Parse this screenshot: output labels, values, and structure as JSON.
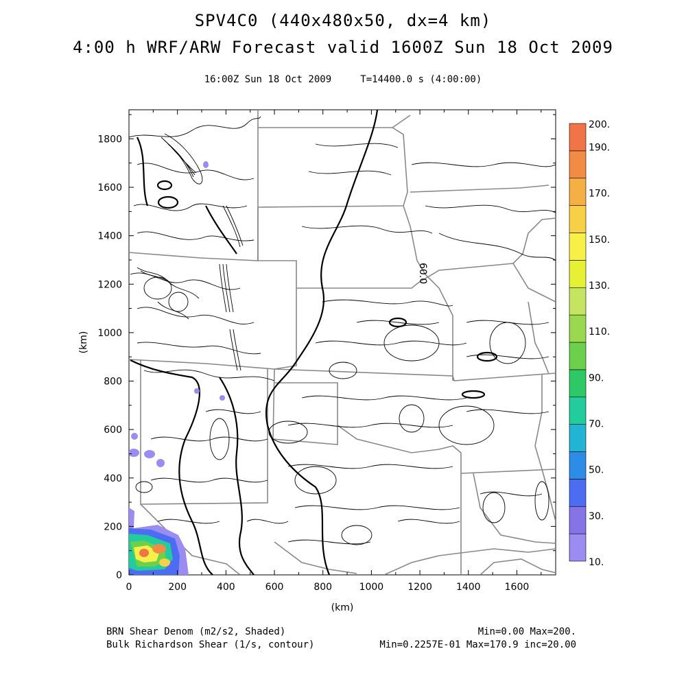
{
  "title_line1": "SPV4C0 (440x480x50, dx=4 km)",
  "title_line2": "4:00 h WRF/ARW Forecast valid 1600Z Sun 18 Oct 2009",
  "subtitle_time": "16:00Z Sun 18 Oct 2009",
  "subtitle_t": "T=14400.0 s (4:00:00)",
  "axes": {
    "xlabel": "(km)",
    "ylabel": "(km)",
    "xlim": [
      0,
      1760
    ],
    "ylim": [
      0,
      1920
    ],
    "xticks": [
      "0",
      "200",
      "400",
      "600",
      "800",
      "1000",
      "1200",
      "1400",
      "1600"
    ],
    "yticks": [
      "0",
      "200",
      "400",
      "600",
      "800",
      "1000",
      "1200",
      "1400",
      "1600",
      "1800"
    ]
  },
  "colorbar": {
    "labels": [
      "10.",
      "30.",
      "50.",
      "70.",
      "90.",
      "110.",
      "130.",
      "150.",
      "170.",
      "190.",
      "200."
    ],
    "colors": [
      "#9a8cf0",
      "#8474e6",
      "#4c6cf2",
      "#2c8ce6",
      "#22b4d4",
      "#22cc9c",
      "#2ec866",
      "#6cd04c",
      "#9ad850",
      "#c4e462",
      "#e6f034",
      "#f8f048",
      "#f8d048",
      "#f4b044",
      "#f28c44",
      "#f07448"
    ]
  },
  "contour_label": "60.0",
  "footer": {
    "shaded_label": "BRN Shear Denom (m2/s2, Shaded)",
    "contour_label": "Bulk Richardson Shear (1/s, contour)",
    "shaded_range": "Min=0.00 Max=200.",
    "contour_range": "Min=0.2257E-01 Max=170.9 inc=20.00"
  }
}
